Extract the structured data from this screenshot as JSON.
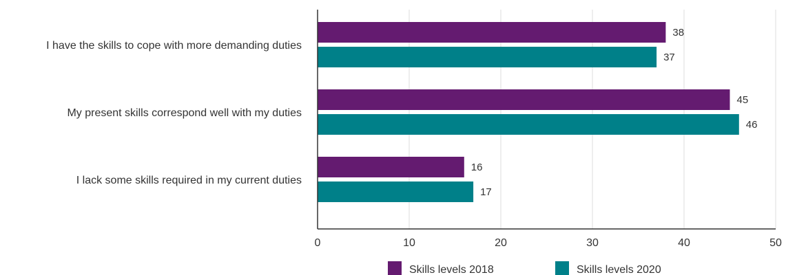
{
  "chart_data": {
    "type": "bar",
    "orientation": "horizontal",
    "title": "",
    "xlabel": "",
    "ylabel": "",
    "categories": [
      "I have the skills to cope with more demanding duties",
      "My present skills correspond well with my duties",
      "I lack some skills required in my current duties"
    ],
    "series": [
      {
        "name": "Skills levels 2018",
        "color": "#641b70",
        "values": [
          38,
          45,
          16
        ]
      },
      {
        "name": "Skills levels 2020",
        "color": "#008089",
        "values": [
          37,
          46,
          17
        ]
      }
    ],
    "xlim": [
      0,
      50
    ],
    "xticks": [
      0,
      10,
      20,
      30,
      40,
      50
    ],
    "grid": true,
    "legend_position": "bottom"
  }
}
